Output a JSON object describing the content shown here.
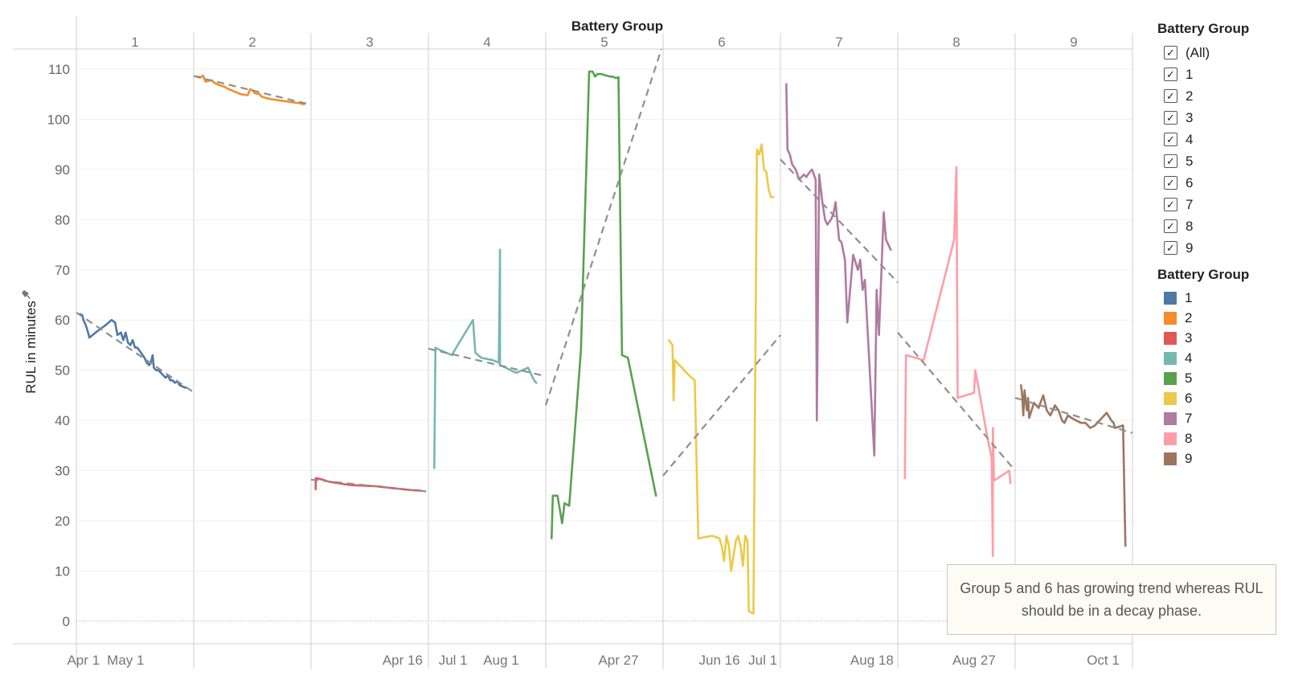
{
  "header": {
    "title": "Battery Group"
  },
  "y_axis": {
    "label": "RUL in minutes",
    "pin_icon": "pin-icon"
  },
  "filter": {
    "title": "Battery Group",
    "items": [
      {
        "label": "(All)",
        "checked": true
      },
      {
        "label": "1",
        "checked": true
      },
      {
        "label": "2",
        "checked": true
      },
      {
        "label": "3",
        "checked": true
      },
      {
        "label": "4",
        "checked": true
      },
      {
        "label": "5",
        "checked": true
      },
      {
        "label": "6",
        "checked": true
      },
      {
        "label": "7",
        "checked": true
      },
      {
        "label": "8",
        "checked": true
      },
      {
        "label": "9",
        "checked": true
      }
    ]
  },
  "color_legend": {
    "title": "Battery Group",
    "items": [
      {
        "label": "1",
        "color": "#4e79a7"
      },
      {
        "label": "2",
        "color": "#f28e2b"
      },
      {
        "label": "3",
        "color": "#e15759"
      },
      {
        "label": "4",
        "color": "#76b7b2"
      },
      {
        "label": "5",
        "color": "#59a14f"
      },
      {
        "label": "6",
        "color": "#edc948"
      },
      {
        "label": "7",
        "color": "#b07aa1"
      },
      {
        "label": "8",
        "color": "#ff9da7"
      },
      {
        "label": "9",
        "color": "#9c755f"
      }
    ]
  },
  "annotation": {
    "text": "Group 5 and 6 has growing trend whereas RUL should be in a decay phase."
  },
  "chart_data": {
    "type": "line",
    "title": "Battery Group",
    "ylabel": "RUL in minutes",
    "ylim": [
      -4.5,
      114
    ],
    "yticks": [
      0,
      10,
      20,
      30,
      40,
      50,
      60,
      70,
      80,
      90,
      100,
      110
    ],
    "trend_line_style": "dashed grey",
    "panels": [
      {
        "group": "1",
        "color": "#4e79a7",
        "xticks": [
          {
            "label": "Apr 1",
            "t": 0.06
          },
          {
            "label": "May 1",
            "t": 0.42
          }
        ],
        "series": [
          [
            0.03,
            61.2
          ],
          [
            0.05,
            61
          ],
          [
            0.06,
            60
          ],
          [
            0.08,
            59
          ],
          [
            0.1,
            57.5
          ],
          [
            0.11,
            56.5
          ],
          [
            0.18,
            57.8
          ],
          [
            0.25,
            59
          ],
          [
            0.3,
            60
          ],
          [
            0.33,
            59.5
          ],
          [
            0.35,
            57
          ],
          [
            0.38,
            57.5
          ],
          [
            0.4,
            56
          ],
          [
            0.42,
            57.5
          ],
          [
            0.44,
            55.5
          ],
          [
            0.46,
            55
          ],
          [
            0.48,
            56
          ],
          [
            0.5,
            54.5
          ],
          [
            0.52,
            54.5
          ],
          [
            0.55,
            53.5
          ],
          [
            0.58,
            52.5
          ],
          [
            0.6,
            51.5
          ],
          [
            0.62,
            51
          ],
          [
            0.64,
            52
          ],
          [
            0.65,
            53
          ],
          [
            0.66,
            50.5
          ],
          [
            0.68,
            50
          ],
          [
            0.7,
            50
          ],
          [
            0.72,
            49.5
          ],
          [
            0.74,
            49
          ],
          [
            0.76,
            48.5
          ],
          [
            0.78,
            49
          ],
          [
            0.8,
            48
          ],
          [
            0.82,
            48
          ],
          [
            0.84,
            47.5
          ],
          [
            0.86,
            47.8
          ],
          [
            0.88,
            47
          ],
          [
            0.9,
            46.8
          ],
          [
            0.93,
            46.5
          ]
        ],
        "trend": [
          61.5,
          45.6
        ]
      },
      {
        "group": "2",
        "color": "#f28e2b",
        "xticks": [],
        "series": [
          [
            0.03,
            108.5
          ],
          [
            0.06,
            108.4
          ],
          [
            0.08,
            108.7
          ],
          [
            0.1,
            107.5
          ],
          [
            0.15,
            107.8
          ],
          [
            0.18,
            107.2
          ],
          [
            0.22,
            106.8
          ],
          [
            0.26,
            106.5
          ],
          [
            0.3,
            106
          ],
          [
            0.35,
            105.5
          ],
          [
            0.4,
            105
          ],
          [
            0.46,
            104.8
          ],
          [
            0.48,
            106
          ],
          [
            0.5,
            105.8
          ],
          [
            0.52,
            105.2
          ],
          [
            0.56,
            105
          ],
          [
            0.58,
            104.5
          ],
          [
            0.62,
            104.2
          ],
          [
            0.66,
            104
          ],
          [
            0.72,
            103.8
          ],
          [
            0.78,
            103.6
          ],
          [
            0.84,
            103.4
          ],
          [
            0.9,
            103.2
          ],
          [
            0.94,
            103
          ]
        ],
        "trend": [
          108.6,
          102.9
        ]
      },
      {
        "group": "3",
        "color": "#e15759",
        "xticks": [
          {
            "label": "Apr 16",
            "t": 0.78
          }
        ],
        "series": [
          [
            0.04,
            26.3
          ],
          [
            0.04,
            28.5
          ],
          [
            0.1,
            28.2
          ],
          [
            0.15,
            27.8
          ],
          [
            0.2,
            27.6
          ],
          [
            0.28,
            27.3
          ],
          [
            0.35,
            27.1
          ],
          [
            0.45,
            27
          ],
          [
            0.55,
            26.9
          ],
          [
            0.62,
            26.7
          ],
          [
            0.7,
            26.5
          ],
          [
            0.78,
            26.3
          ],
          [
            0.86,
            26.1
          ],
          [
            0.94,
            26
          ]
        ],
        "trend": [
          28.2,
          25.8
        ]
      },
      {
        "group": "4",
        "color": "#76b7b2",
        "xticks": [
          {
            "label": "Jul 1",
            "t": 0.21
          },
          {
            "label": "Aug 1",
            "t": 0.62
          }
        ],
        "series": [
          [
            0.05,
            30.5
          ],
          [
            0.06,
            54.5
          ],
          [
            0.1,
            54
          ],
          [
            0.15,
            53.5
          ],
          [
            0.2,
            53
          ],
          [
            0.25,
            55
          ],
          [
            0.38,
            60
          ],
          [
            0.4,
            53.5
          ],
          [
            0.45,
            52.5
          ],
          [
            0.55,
            52
          ],
          [
            0.6,
            51.5
          ],
          [
            0.61,
            74
          ],
          [
            0.61,
            51
          ],
          [
            0.66,
            50.5
          ],
          [
            0.7,
            50
          ],
          [
            0.75,
            49.5
          ],
          [
            0.8,
            50
          ],
          [
            0.85,
            50.5
          ],
          [
            0.88,
            49
          ],
          [
            0.9,
            48
          ],
          [
            0.92,
            47.5
          ]
        ],
        "trend": [
          54.3,
          48.8
        ]
      },
      {
        "group": "5",
        "color": "#59a14f",
        "xticks": [
          {
            "label": "Apr 27",
            "t": 0.62
          }
        ],
        "series": [
          [
            0.05,
            16.5
          ],
          [
            0.06,
            25
          ],
          [
            0.1,
            25
          ],
          [
            0.14,
            19.5
          ],
          [
            0.16,
            23.5
          ],
          [
            0.2,
            23
          ],
          [
            0.3,
            54
          ],
          [
            0.37,
            109.5
          ],
          [
            0.4,
            109.5
          ],
          [
            0.42,
            108.5
          ],
          [
            0.44,
            109
          ],
          [
            0.46,
            109
          ],
          [
            0.48,
            109
          ],
          [
            0.5,
            108.8
          ],
          [
            0.52,
            108.7
          ],
          [
            0.55,
            108.5
          ],
          [
            0.57,
            108.5
          ],
          [
            0.6,
            108.2
          ],
          [
            0.62,
            108.4
          ],
          [
            0.65,
            53
          ],
          [
            0.7,
            52.5
          ],
          [
            0.94,
            25
          ]
        ],
        "trend": [
          43,
          115
        ]
      },
      {
        "group": "6",
        "color": "#edc948",
        "xticks": [
          {
            "label": "Jun 16",
            "t": 0.48
          },
          {
            "label": "Jul 1",
            "t": 0.85
          }
        ],
        "series": [
          [
            0.05,
            56
          ],
          [
            0.08,
            55
          ],
          [
            0.09,
            44
          ],
          [
            0.1,
            52
          ],
          [
            0.14,
            51
          ],
          [
            0.18,
            50
          ],
          [
            0.22,
            49
          ],
          [
            0.27,
            48
          ],
          [
            0.3,
            16.5
          ],
          [
            0.42,
            17
          ],
          [
            0.48,
            16.5
          ],
          [
            0.5,
            15
          ],
          [
            0.52,
            12
          ],
          [
            0.54,
            17
          ],
          [
            0.56,
            15
          ],
          [
            0.58,
            10
          ],
          [
            0.62,
            16
          ],
          [
            0.64,
            17
          ],
          [
            0.66,
            15
          ],
          [
            0.68,
            11
          ],
          [
            0.7,
            17
          ],
          [
            0.72,
            16
          ],
          [
            0.73,
            2
          ],
          [
            0.77,
            1.5
          ],
          [
            0.8,
            94
          ],
          [
            0.82,
            93
          ],
          [
            0.84,
            95
          ],
          [
            0.86,
            90
          ],
          [
            0.88,
            89.5
          ],
          [
            0.9,
            86
          ],
          [
            0.92,
            84.5
          ],
          [
            0.94,
            84.5
          ]
        ],
        "trend": [
          29,
          57
        ]
      },
      {
        "group": "7",
        "color": "#b07aa1",
        "xticks": [
          {
            "label": "Aug 18",
            "t": 0.78
          }
        ],
        "series": [
          [
            0.05,
            107
          ],
          [
            0.06,
            94
          ],
          [
            0.08,
            93
          ],
          [
            0.1,
            91
          ],
          [
            0.13,
            90
          ],
          [
            0.16,
            88
          ],
          [
            0.2,
            89
          ],
          [
            0.22,
            88.5
          ],
          [
            0.25,
            89.5
          ],
          [
            0.27,
            90
          ],
          [
            0.3,
            88
          ],
          [
            0.31,
            40
          ],
          [
            0.33,
            89
          ],
          [
            0.36,
            83
          ],
          [
            0.38,
            80
          ],
          [
            0.4,
            79
          ],
          [
            0.43,
            80
          ],
          [
            0.45,
            81
          ],
          [
            0.47,
            83.5
          ],
          [
            0.5,
            76
          ],
          [
            0.52,
            75.5
          ],
          [
            0.55,
            72
          ],
          [
            0.57,
            59.5
          ],
          [
            0.62,
            73
          ],
          [
            0.66,
            70
          ],
          [
            0.68,
            72
          ],
          [
            0.7,
            66
          ],
          [
            0.72,
            68
          ],
          [
            0.8,
            33
          ],
          [
            0.82,
            66
          ],
          [
            0.84,
            57
          ],
          [
            0.88,
            81.5
          ],
          [
            0.9,
            76
          ],
          [
            0.94,
            74
          ]
        ],
        "trend": [
          92,
          67.5
        ]
      },
      {
        "group": "8",
        "color": "#ff9da7",
        "xticks": [
          {
            "label": "Aug 27",
            "t": 0.65
          }
        ],
        "series": [
          [
            0.06,
            28.5
          ],
          [
            0.07,
            53
          ],
          [
            0.15,
            52.5
          ],
          [
            0.22,
            52
          ],
          [
            0.48,
            76
          ],
          [
            0.5,
            90.5
          ],
          [
            0.51,
            44.5
          ],
          [
            0.65,
            45.5
          ],
          [
            0.66,
            50
          ],
          [
            0.7,
            45
          ],
          [
            0.76,
            37
          ],
          [
            0.8,
            32.5
          ],
          [
            0.81,
            13
          ],
          [
            0.81,
            38.5
          ],
          [
            0.82,
            28
          ],
          [
            0.95,
            30
          ],
          [
            0.96,
            27.5
          ]
        ],
        "trend": [
          57.5,
          30
        ]
      },
      {
        "group": "9",
        "color": "#9c755f",
        "xticks": [
          {
            "label": "Oct 1",
            "t": 0.75
          }
        ],
        "series": [
          [
            0.05,
            47
          ],
          [
            0.06,
            45
          ],
          [
            0.07,
            41
          ],
          [
            0.08,
            46
          ],
          [
            0.1,
            42
          ],
          [
            0.11,
            44.5
          ],
          [
            0.12,
            40.5
          ],
          [
            0.16,
            43.5
          ],
          [
            0.2,
            42.5
          ],
          [
            0.24,
            45
          ],
          [
            0.27,
            42
          ],
          [
            0.3,
            41
          ],
          [
            0.34,
            43
          ],
          [
            0.37,
            42
          ],
          [
            0.4,
            40
          ],
          [
            0.42,
            39.5
          ],
          [
            0.45,
            41
          ],
          [
            0.48,
            40.5
          ],
          [
            0.52,
            40
          ],
          [
            0.56,
            39.5
          ],
          [
            0.6,
            39.5
          ],
          [
            0.64,
            38.5
          ],
          [
            0.68,
            39
          ],
          [
            0.72,
            40
          ],
          [
            0.78,
            41.5
          ],
          [
            0.82,
            40
          ],
          [
            0.84,
            39.5
          ],
          [
            0.85,
            38.5
          ],
          [
            0.92,
            39
          ],
          [
            0.94,
            15
          ]
        ],
        "trend": [
          44.5,
          37.5
        ]
      }
    ]
  }
}
